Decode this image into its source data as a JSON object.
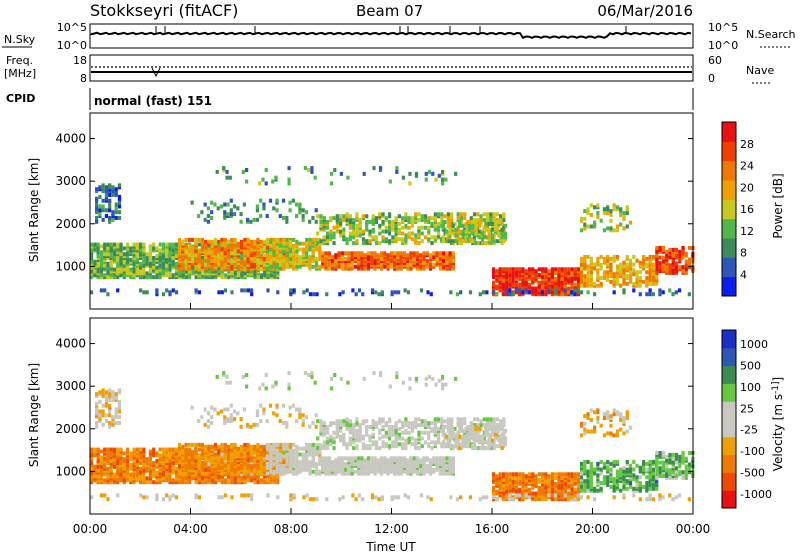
{
  "header": {
    "station": "Stokkseyri (fitACF)",
    "beam": "Beam 07",
    "date": "06/Mar/2016"
  },
  "nsky_panel": {
    "left_label": "N.Sky",
    "left_ticks": [
      "10^5",
      "10^0"
    ],
    "right_label": "N.Search",
    "right_ticks": [
      "10^5",
      "10^0"
    ]
  },
  "freq_panel": {
    "left_label_1": "Freq.",
    "left_label_2": "[MHz]",
    "left_ticks": [
      "18",
      "8"
    ],
    "right_label": "Nave",
    "right_ticks": [
      "60",
      "0"
    ]
  },
  "cpid": {
    "label": "CPID",
    "value": "normal (fast) 151"
  },
  "colors": {
    "power": [
      "#0a1ef0",
      "#2e55b8",
      "#3d8a5a",
      "#4fb848",
      "#c8c81e",
      "#f0a000",
      "#f07800",
      "#f04000",
      "#e81010"
    ],
    "velocity": [
      "#e81010",
      "#f04a00",
      "#f07a00",
      "#f0a000",
      "#c8c8c0",
      "#c8c8c0",
      "#66c840",
      "#3a8c50",
      "#2e55b8",
      "#1a30c8"
    ]
  },
  "chart_data": [
    {
      "type": "heatmap",
      "name": "power",
      "xlabel": "Time UT",
      "ylabel": "Slant Range [km]",
      "x_ticks": [
        "00:00",
        "04:00",
        "08:00",
        "12:00",
        "16:00",
        "20:00",
        "00:00"
      ],
      "y_ticks": [
        "1000",
        "2000",
        "3000",
        "4000"
      ],
      "ylim": [
        0,
        4600
      ],
      "colorbar_label": "Power [dB]",
      "colorbar_ticks": [
        "4",
        "8",
        "12",
        "16",
        "20",
        "24",
        "28"
      ],
      "colorbar_range": [
        0,
        32
      ]
    },
    {
      "type": "heatmap",
      "name": "velocity",
      "xlabel": "Time UT",
      "ylabel": "Slant Range [km]",
      "x_ticks": [
        "00:00",
        "04:00",
        "08:00",
        "12:00",
        "16:00",
        "20:00",
        "00:00"
      ],
      "y_ticks": [
        "1000",
        "2000",
        "3000",
        "4000"
      ],
      "ylim": [
        0,
        4600
      ],
      "colorbar_label": "Velocity [m s^-1]",
      "colorbar_ticks": [
        "1000",
        "500",
        "100",
        "25",
        "-25",
        "-100",
        "-500",
        "-1000"
      ]
    }
  ]
}
